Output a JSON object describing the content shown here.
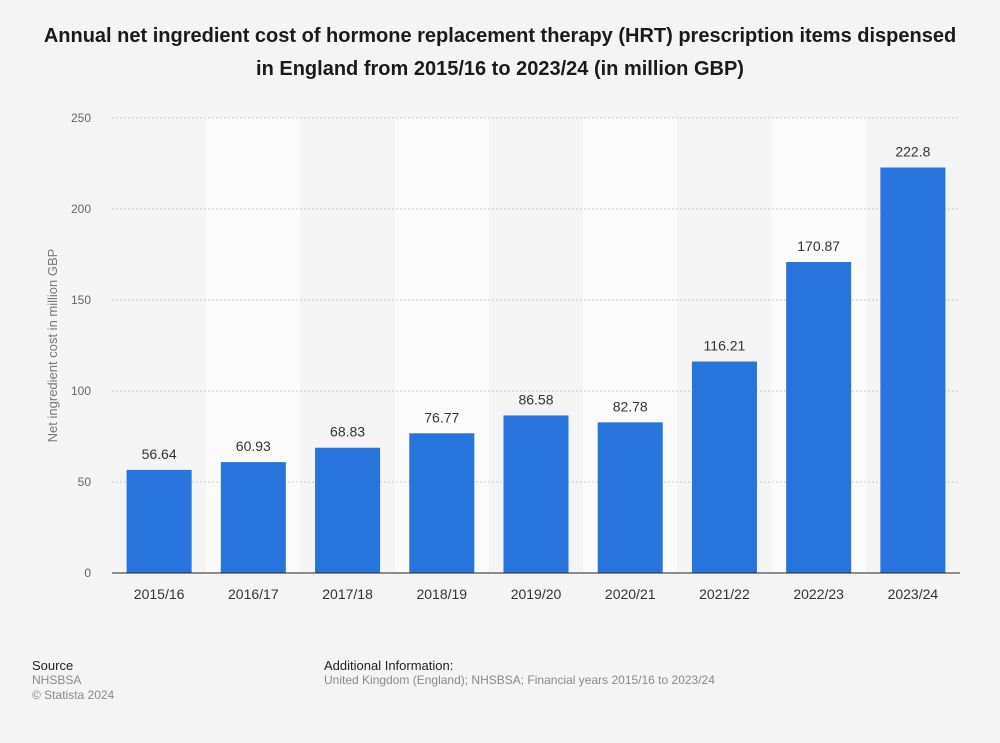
{
  "chart_data": {
    "type": "bar",
    "title": "Annual net ingredient cost of hormone replacement therapy (HRT) prescription items dispensed in England from 2015/16 to 2023/24 (in million GBP)",
    "ylabel": "Net ingredient cost in million GBP",
    "xlabel": "",
    "categories": [
      "2015/16",
      "2016/17",
      "2017/18",
      "2018/19",
      "2019/20",
      "2020/21",
      "2021/22",
      "2022/23",
      "2023/24"
    ],
    "values": [
      56.64,
      60.93,
      68.83,
      76.77,
      86.58,
      82.78,
      116.21,
      170.87,
      222.8
    ],
    "value_labels": [
      "56.64",
      "60.93",
      "68.83",
      "76.77",
      "86.58",
      "82.78",
      "116.21",
      "170.87",
      "222.8"
    ],
    "ylim": [
      0,
      250
    ],
    "yticks": [
      "0",
      "50",
      "100",
      "150",
      "200",
      "250"
    ],
    "grid": true,
    "bar_color": "#2874dd"
  },
  "footer": {
    "source_heading": "Source",
    "source_name": "NHSBSA",
    "copyright": "© Statista 2024",
    "info_heading": "Additional Information:",
    "info_text": "United Kingdom (England); NHSBSA; Financial years 2015/16 to 2023/24"
  }
}
